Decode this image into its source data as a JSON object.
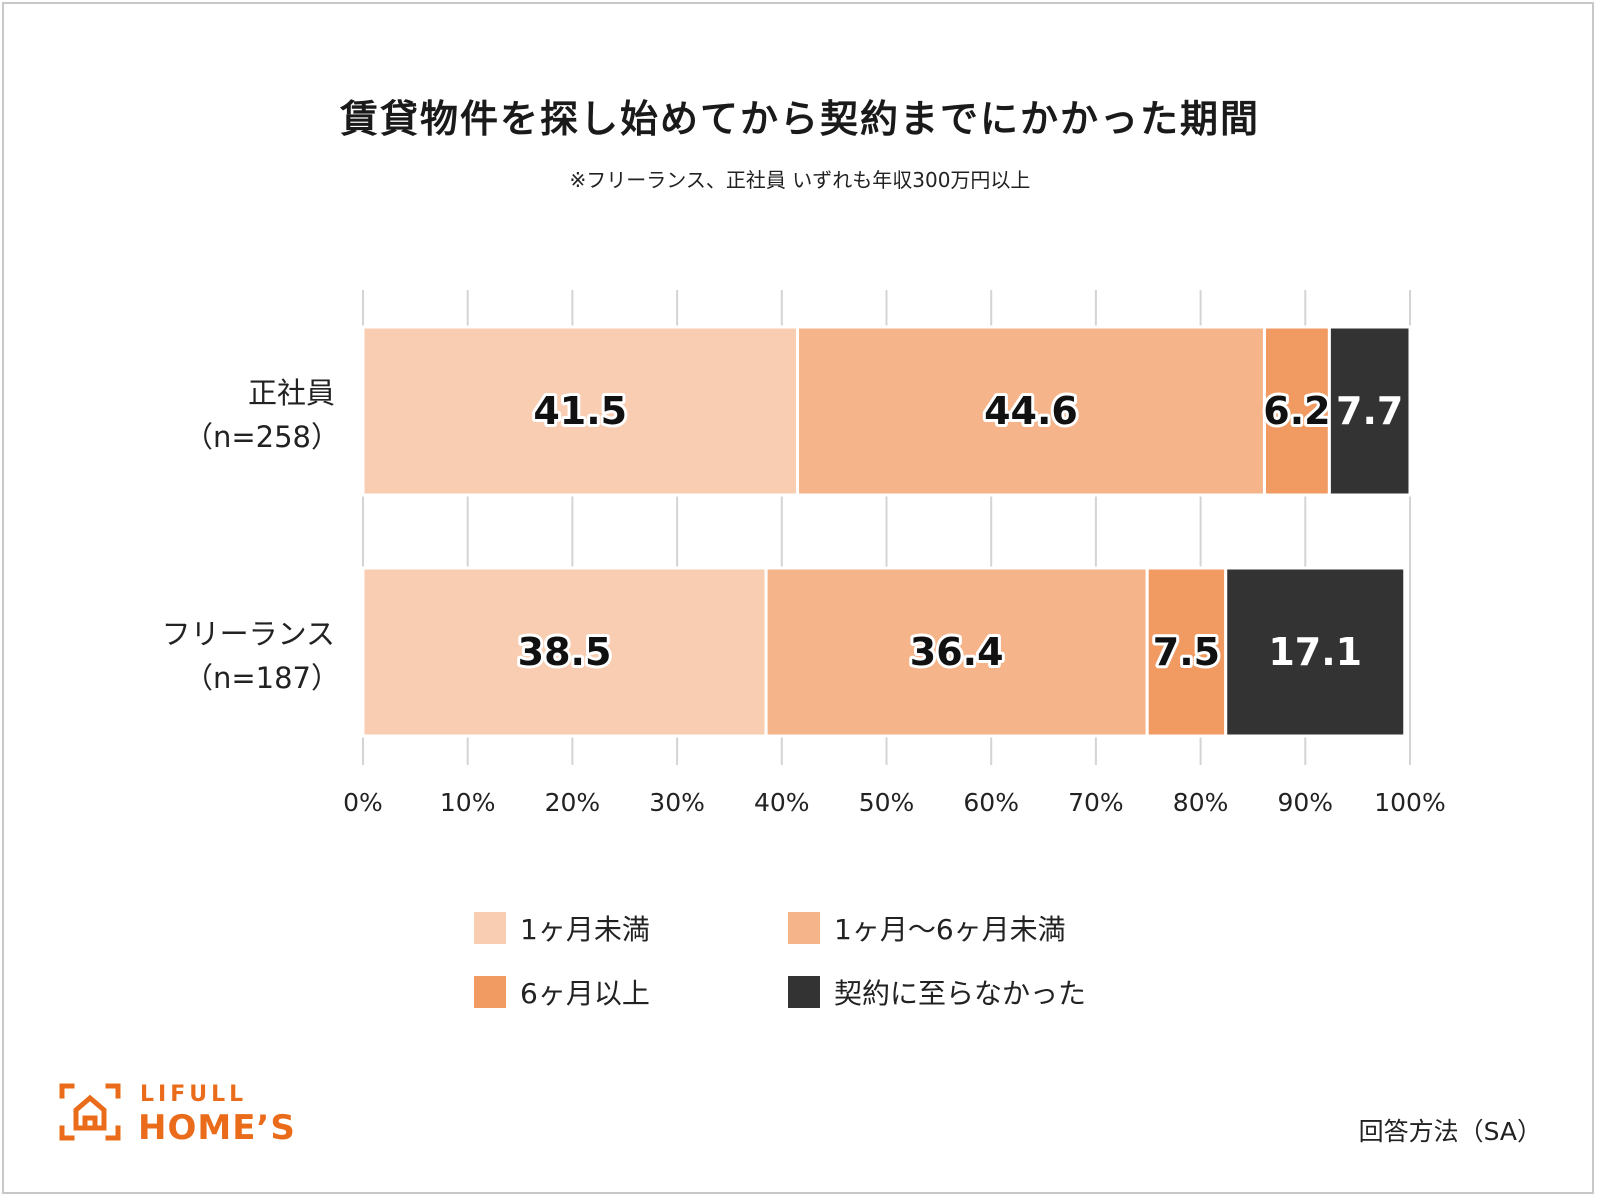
{
  "title": "賃貸物件を探し始めてから契約までにかかった期間",
  "subtitle": "※フリーランス、正社員 いずれも年収300万円以上",
  "colors": {
    "under_1m": "#f8cdb1",
    "m1_to_6": "#f5b48a",
    "over_6m": "#f19a61",
    "no_contract": "#333333",
    "grid": "#d4d4d4",
    "brand": "#ea6c1b"
  },
  "chart_data": {
    "type": "bar",
    "orientation": "horizontal",
    "stacked": true,
    "percent_scale": true,
    "categories": [
      {
        "name": "正社員",
        "n": "（n=258）"
      },
      {
        "name": "フリーランス",
        "n": "（n=187）"
      }
    ],
    "series": [
      {
        "name": "1ヶ月未満",
        "color": "#f8cdb1",
        "text_style": "outlined",
        "values": [
          41.5,
          38.5
        ]
      },
      {
        "name": "1ヶ月〜6ヶ月未満",
        "color": "#f5b48a",
        "text_style": "outlined",
        "values": [
          44.6,
          36.4
        ]
      },
      {
        "name": "6ヶ月以上",
        "color": "#f19a61",
        "text_style": "outlined",
        "values": [
          6.2,
          7.5
        ]
      },
      {
        "name": "契約に至らなかった",
        "color": "#333333",
        "text_style": "white",
        "values": [
          7.7,
          17.1
        ]
      }
    ],
    "xlim": [
      0,
      100
    ],
    "xticks": [
      "0%",
      "10%",
      "20%",
      "30%",
      "40%",
      "50%",
      "60%",
      "70%",
      "80%",
      "90%",
      "100%"
    ],
    "grid": true,
    "legend_position": "bottom"
  },
  "legend": [
    {
      "label": "1ヶ月未満",
      "color": "#f8cdb1"
    },
    {
      "label": "1ヶ月〜6ヶ月未満",
      "color": "#f5b48a"
    },
    {
      "label": "6ヶ月以上",
      "color": "#f19a61"
    },
    {
      "label": "契約に至らなかった",
      "color": "#333333"
    }
  ],
  "logo": {
    "line1": "LIFULL",
    "line2": "HOME’S"
  },
  "method": "回答方法（SA）"
}
